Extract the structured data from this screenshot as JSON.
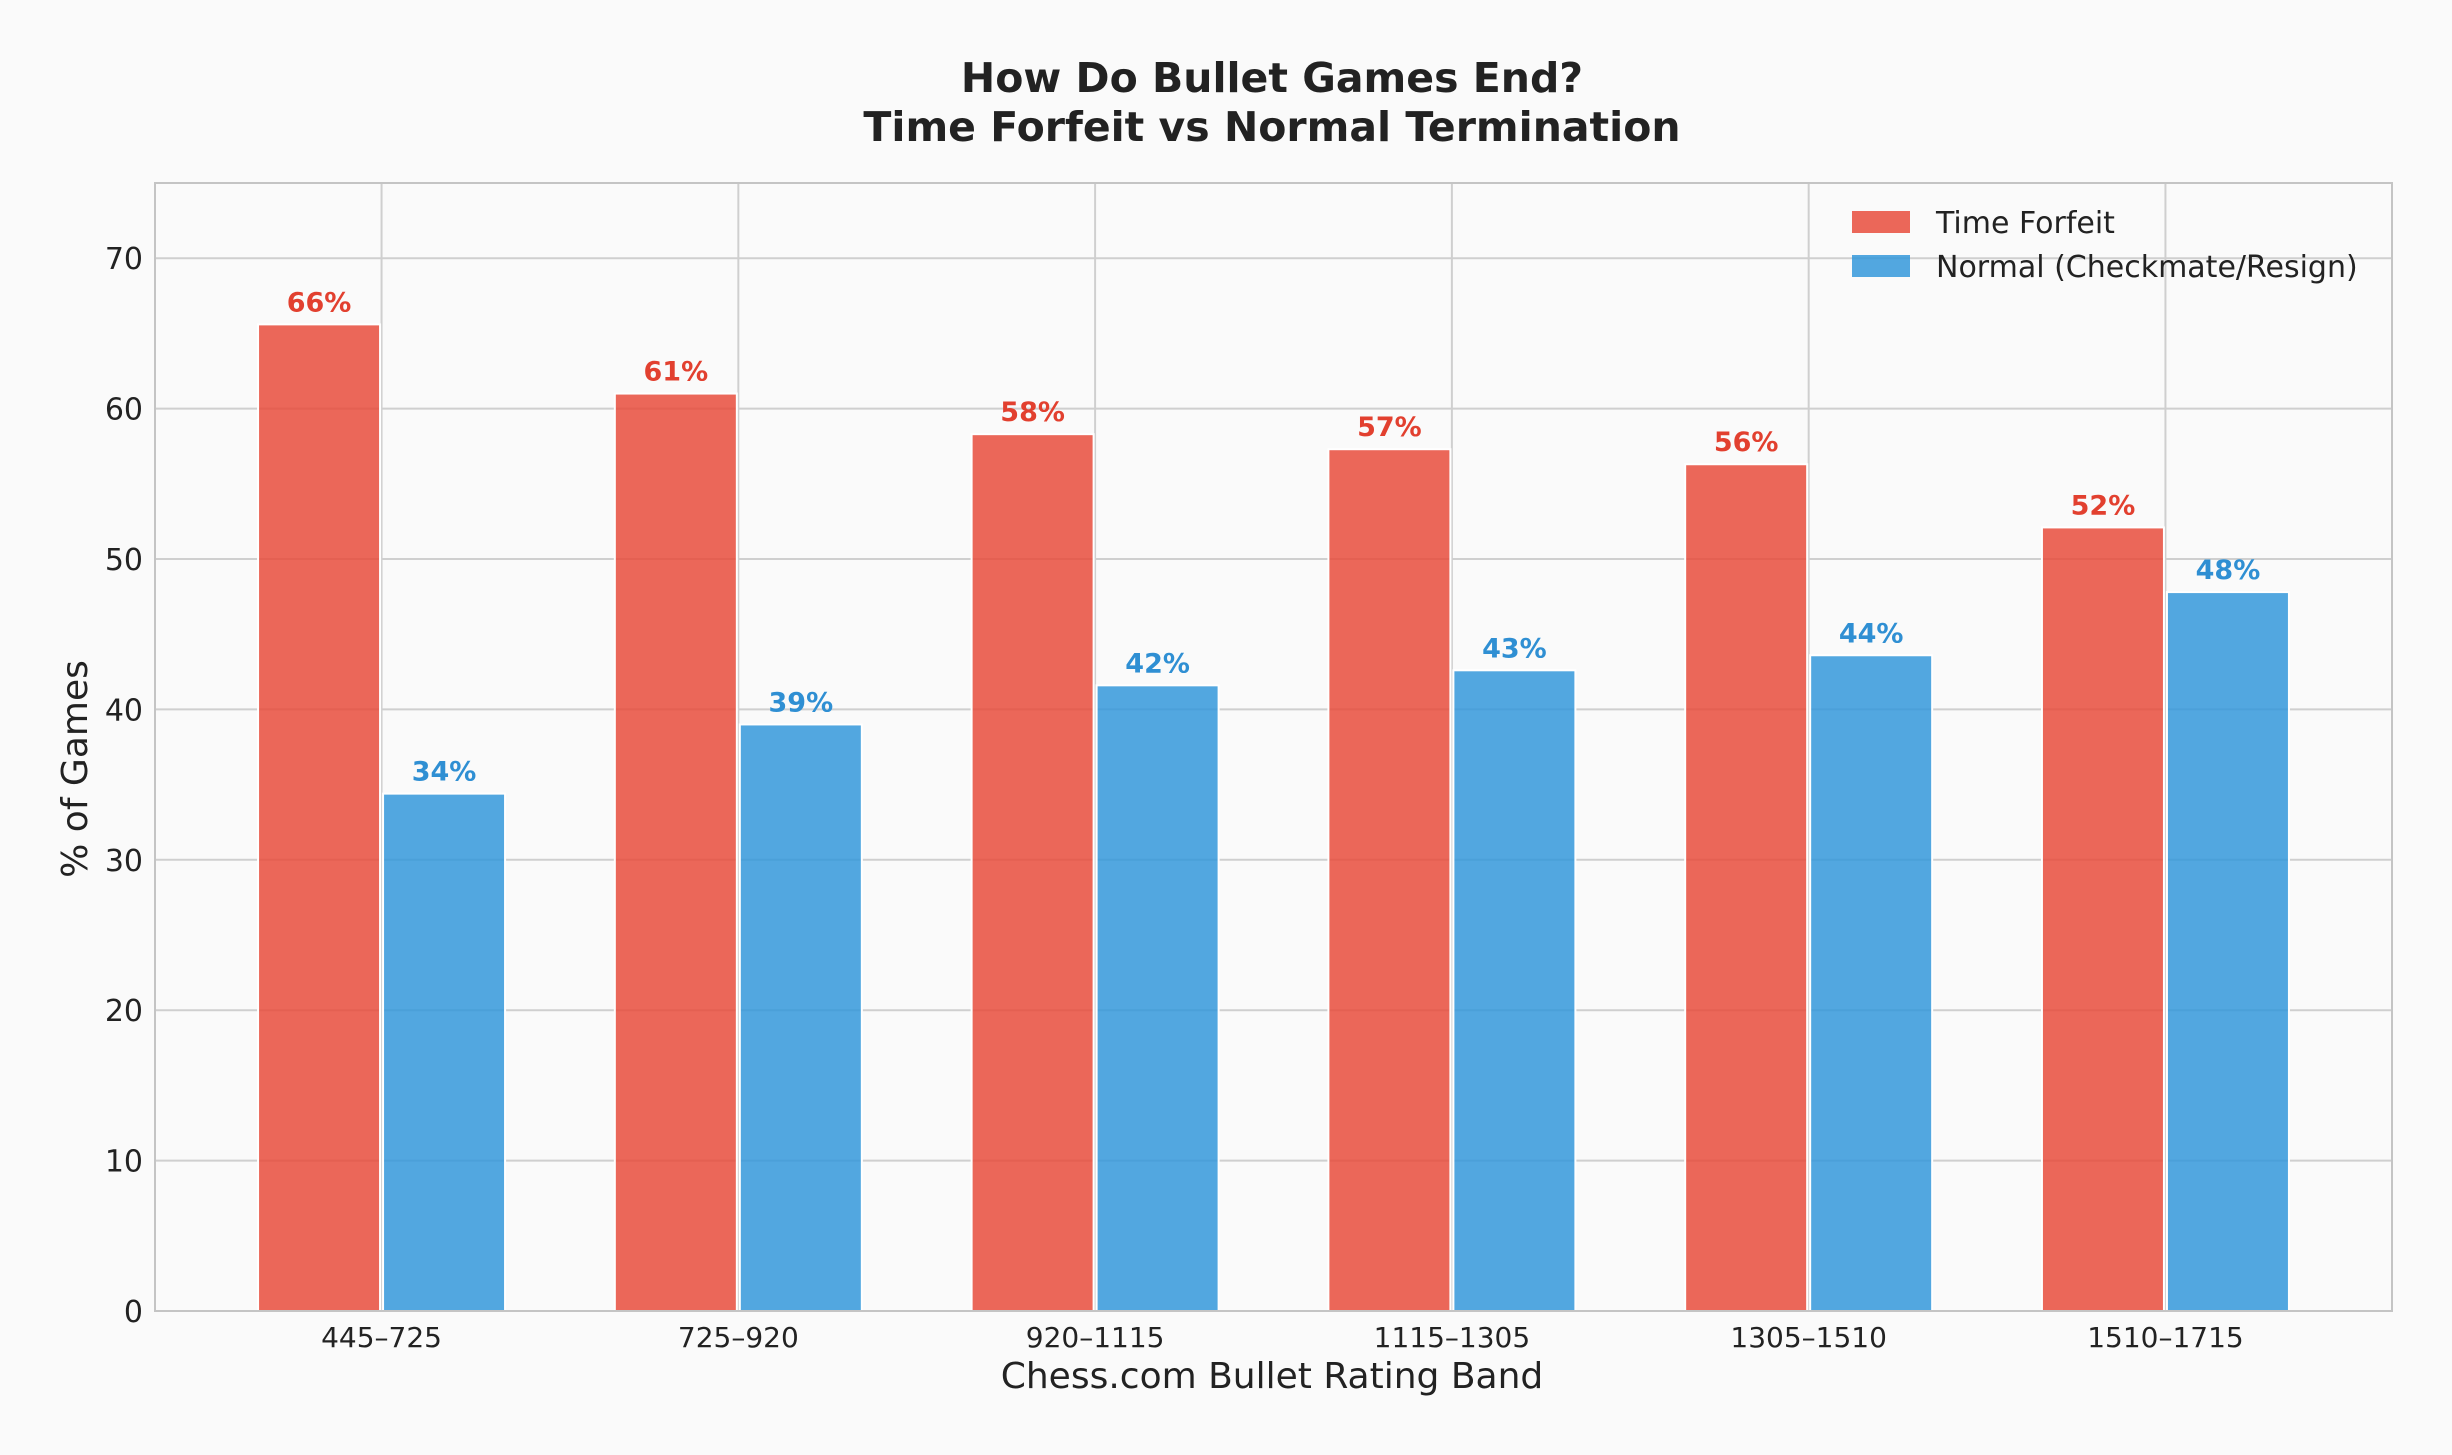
{
  "chart_data": {
    "type": "bar",
    "title": [
      "How Do Bullet Games End?",
      "Time Forfeit vs Normal Termination"
    ],
    "xlabel": "Chess.com Bullet Rating Band",
    "ylabel": "% of Games",
    "categories": [
      "445–725",
      "725–920",
      "920–1115",
      "1115–1305",
      "1305–1510",
      "1510–1715"
    ],
    "series": [
      {
        "name": "Time Forfeit",
        "color": "#e74c3c",
        "label_color": "#e2402f",
        "values": [
          65.6,
          61.0,
          58.3,
          57.3,
          56.3,
          52.1
        ],
        "labels": [
          "66%",
          "61%",
          "58%",
          "57%",
          "56%",
          "52%"
        ]
      },
      {
        "name": "Normal (Checkmate/Resign)",
        "color": "#3498db",
        "label_color": "#2f8fd3",
        "values": [
          34.4,
          39.0,
          41.6,
          42.6,
          43.6,
          47.8
        ],
        "labels": [
          "34%",
          "39%",
          "42%",
          "43%",
          "44%",
          "48%"
        ]
      }
    ],
    "ylim": [
      0,
      75
    ],
    "yticks": [
      0,
      10,
      20,
      30,
      40,
      50,
      60,
      70
    ],
    "grid": true,
    "legend": "top-right"
  }
}
